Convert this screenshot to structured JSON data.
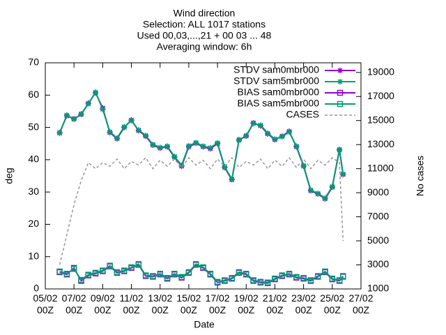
{
  "chart_data": {
    "type": "line",
    "title": [
      "Wind direction",
      "Selection: ALL   1017 stations",
      "Used 00,03,...,21 + 00 03 ... 48",
      "Averaging window:  6h"
    ],
    "xlabel": "Date",
    "ylabel": "deg",
    "y2label": "No cases",
    "x": [
      6,
      6.5,
      7,
      7.5,
      8,
      8.5,
      9,
      9.5,
      10,
      10.5,
      11,
      11.5,
      12,
      12.5,
      13,
      13.5,
      14,
      14.5,
      15,
      15.5,
      16,
      16.5,
      17,
      17.5,
      18,
      18.5,
      19,
      19.5,
      20,
      20.5,
      21,
      21.5,
      22,
      22.5,
      23,
      23.5,
      24,
      24.5,
      25,
      25.5,
      25.75
    ],
    "xlim": [
      5,
      27
    ],
    "xticks": [
      {
        "value": 5,
        "label": [
          "05/02",
          "00Z"
        ]
      },
      {
        "value": 7,
        "label": [
          "07/02",
          "00Z"
        ]
      },
      {
        "value": 9,
        "label": [
          "09/02",
          "00Z"
        ]
      },
      {
        "value": 11,
        "label": [
          "11/02",
          "00Z"
        ]
      },
      {
        "value": 13,
        "label": [
          "13/02",
          "00Z"
        ]
      },
      {
        "value": 15,
        "label": [
          "15/02",
          "00Z"
        ]
      },
      {
        "value": 17,
        "label": [
          "17/02",
          "00Z"
        ]
      },
      {
        "value": 19,
        "label": [
          "19/02",
          "00Z"
        ]
      },
      {
        "value": 21,
        "label": [
          "21/02",
          "00Z"
        ]
      },
      {
        "value": 23,
        "label": [
          "23/02",
          "00Z"
        ]
      },
      {
        "value": 25,
        "label": [
          "25/02",
          "00Z"
        ]
      },
      {
        "value": 27,
        "label": [
          "27/02",
          "00Z"
        ]
      }
    ],
    "ylim": [
      0,
      70
    ],
    "yticks": [
      0,
      10,
      20,
      30,
      40,
      50,
      60,
      70
    ],
    "y2lim": [
      1000,
      19800
    ],
    "y2ticks": [
      1000,
      3000,
      5000,
      7000,
      9000,
      11000,
      13000,
      15000,
      17000,
      19000
    ],
    "series": [
      {
        "name": "STDV sam0mbr000",
        "color": "#9400d3",
        "marker": "star",
        "values": [
          48.4,
          53.6,
          52.7,
          54,
          57.5,
          60.7,
          56,
          48.4,
          46.5,
          50,
          52.3,
          49,
          47.3,
          44.5,
          43.6,
          44,
          40.8,
          38,
          44,
          45.1,
          44,
          43.4,
          45,
          37.6,
          33.8,
          46.2,
          47.3,
          51.4,
          50.5,
          48,
          46.2,
          47.3,
          48.8,
          44,
          38,
          30.4,
          29.4,
          27.9,
          31.5,
          43,
          35.4
        ]
      },
      {
        "name": "STDV sam5mbr000",
        "color": "#009e73",
        "marker": "star",
        "values": [
          48.2,
          53.8,
          52.5,
          54.2,
          57.3,
          60.9,
          55.6,
          48.6,
          46.7,
          50.2,
          52.1,
          49.2,
          47.5,
          44.7,
          43.8,
          44.2,
          41,
          38.3,
          44.3,
          45.3,
          44.2,
          43.7,
          45.2,
          37.8,
          34,
          46,
          47.5,
          51.2,
          50.7,
          48.2,
          46.4,
          47.1,
          48.6,
          44.2,
          38.2,
          30.6,
          29.6,
          28.1,
          31.7,
          43.2,
          35.6
        ]
      },
      {
        "name": "BIAS sam0mbr000",
        "color": "#9400d3",
        "marker": "square",
        "values": [
          5.2,
          4.5,
          6.5,
          2.5,
          4.2,
          4.8,
          5.5,
          7,
          5,
          5.5,
          6.5,
          7.5,
          4,
          3.8,
          4.5,
          3.2,
          4.5,
          3.5,
          5,
          7.5,
          6.5,
          4.5,
          2,
          2.5,
          3.2,
          5,
          4.5,
          2.5,
          2,
          1.8,
          3,
          4,
          4.5,
          3.5,
          3.2,
          2.5,
          3.8,
          5.2,
          3,
          2.5,
          3.8
        ]
      },
      {
        "name": "BIAS sam5mbr000",
        "color": "#009e73",
        "marker": "square",
        "values": [
          5.4,
          4.7,
          6.2,
          2.8,
          4.4,
          5,
          5.7,
          7.2,
          5.2,
          5.7,
          6.7,
          7.7,
          4.2,
          4,
          4.7,
          3.4,
          4.7,
          3.7,
          5.2,
          7.7,
          6.7,
          4.7,
          2.2,
          2.7,
          3.4,
          5.2,
          4.7,
          2.7,
          2.2,
          2,
          3.2,
          4.2,
          4.7,
          3.7,
          3.4,
          2.7,
          4,
          5.4,
          3.2,
          2.7,
          4
        ]
      },
      {
        "name": "CASES",
        "color": "#999999",
        "axis": "y2",
        "dash": true,
        "values": [
          3000,
          5500,
          8000,
          10000,
          11500,
          11000,
          11500,
          11200,
          11800,
          11000,
          11600,
          11300,
          11900,
          11000,
          11700,
          11200,
          11800,
          11100,
          11900,
          11300,
          11700,
          11000,
          11800,
          11200,
          11900,
          11100,
          11600,
          11300,
          11800,
          11000,
          11700,
          11200,
          11900,
          11100,
          11800,
          11000,
          11700,
          11300,
          11900,
          11500,
          5000
        ]
      }
    ]
  }
}
